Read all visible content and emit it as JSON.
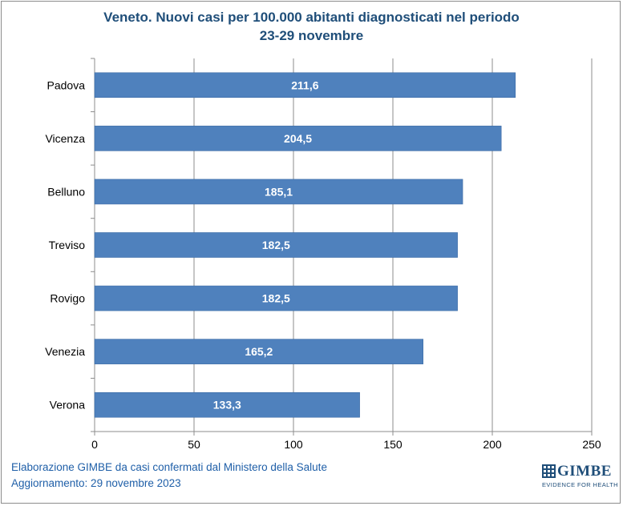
{
  "chart_data": {
    "type": "bar",
    "orientation": "horizontal",
    "title": "Veneto. Nuovi casi per 100.000 abitanti diagnosticati nel periodo",
    "subtitle": "23-29 novembre",
    "categories": [
      "Padova",
      "Vicenza",
      "Belluno",
      "Treviso",
      "Rovigo",
      "Venezia",
      "Verona"
    ],
    "values": [
      211.6,
      204.5,
      185.1,
      182.5,
      182.5,
      165.2,
      133.3
    ],
    "value_labels": [
      "211,6",
      "204,5",
      "185,1",
      "182,5",
      "182,5",
      "165,2",
      "133,3"
    ],
    "xlim": [
      0,
      250
    ],
    "xticks": [
      0,
      50,
      100,
      150,
      200,
      250
    ],
    "grid": "vertical",
    "legend": "none",
    "bar_color": "#4f81bd"
  },
  "footer": {
    "line1": "Elaborazione GIMBE da casi confermati dal Ministero della Salute",
    "line2": "Aggiornamento: 29 novembre 2023"
  },
  "logo": {
    "word": "GIMBE",
    "tagline": "EVIDENCE FOR HEALTH"
  }
}
